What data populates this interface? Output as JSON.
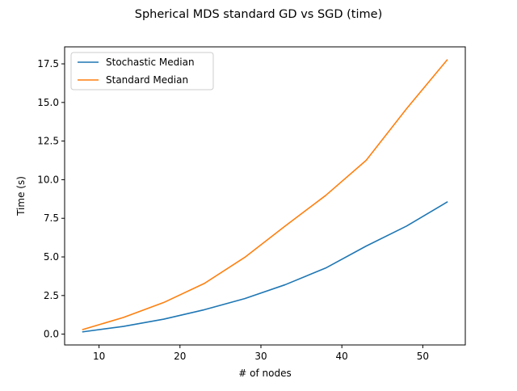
{
  "chart_data": {
    "type": "line",
    "title": "Spherical MDS standard GD vs SGD (time)",
    "xlabel": "# of nodes",
    "ylabel": "Time (s)",
    "xlim": [
      5.75,
      55.25
    ],
    "ylim": [
      -0.7,
      18.6
    ],
    "xticks": [
      10,
      20,
      30,
      40,
      50
    ],
    "xtick_labels": [
      "10",
      "20",
      "30",
      "40",
      "50"
    ],
    "yticks": [
      0,
      2.5,
      5,
      7.5,
      10,
      12.5,
      15,
      17.5
    ],
    "ytick_labels": [
      "0.0",
      "2.5",
      "5.0",
      "7.5",
      "10.0",
      "12.5",
      "15.0",
      "17.5"
    ],
    "grid": false,
    "legend_position": "upper-left",
    "x": [
      8,
      13,
      18,
      23,
      28,
      33,
      38,
      43,
      48,
      53
    ],
    "series": [
      {
        "name": "Stochastic Median",
        "color": "#1f77b4",
        "values": [
          0.15,
          0.5,
          0.97,
          1.58,
          2.3,
          3.2,
          4.28,
          5.7,
          7.0,
          8.55
        ]
      },
      {
        "name": "Standard Median",
        "color": "#ff7f0e",
        "values": [
          0.3,
          1.08,
          2.05,
          3.28,
          4.97,
          7.0,
          8.98,
          11.25,
          14.6,
          17.75
        ]
      }
    ]
  }
}
